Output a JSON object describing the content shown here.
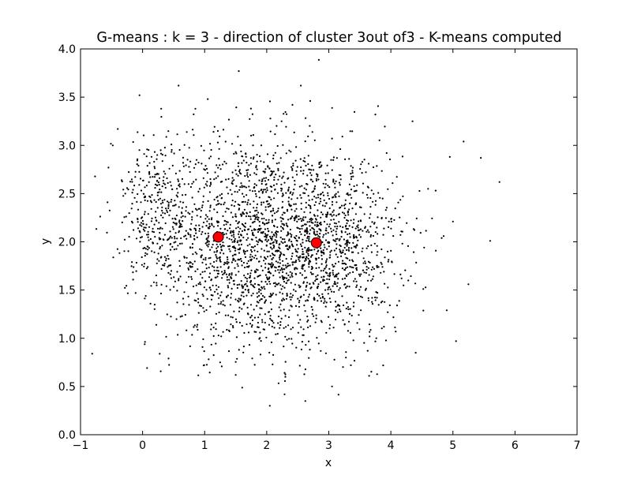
{
  "chart_data": {
    "type": "scatter",
    "title": "G-means : k = 3 - direction of cluster 3out of3 - K-means computed",
    "xlabel": "x",
    "ylabel": "y",
    "xlim": [
      -1,
      7
    ],
    "ylim": [
      0.0,
      4.0
    ],
    "xticks": [
      -1,
      0,
      1,
      2,
      3,
      4,
      5,
      6,
      7
    ],
    "xtick_labels": [
      "−1",
      "0",
      "1",
      "2",
      "3",
      "4",
      "5",
      "6",
      "7"
    ],
    "yticks": [
      0.0,
      0.5,
      1.0,
      1.5,
      2.0,
      2.5,
      3.0,
      3.5,
      4.0
    ],
    "ytick_labels": [
      "0.0",
      "0.5",
      "1.0",
      "1.5",
      "2.0",
      "2.5",
      "3.0",
      "3.5",
      "4.0"
    ],
    "grid": false,
    "series": [
      {
        "marker": "dot",
        "color": "#000000",
        "clusters": [
          {
            "center": [
              1.6,
              2.0
            ],
            "spread": [
              0.75,
              0.55
            ],
            "count": 1500
          },
          {
            "center": [
              3.0,
              1.95
            ],
            "spread": [
              0.6,
              0.5
            ],
            "count": 1000
          },
          {
            "center": [
              0.2,
              2.4
            ],
            "spread": [
              0.35,
              0.35
            ],
            "count": 230
          }
        ],
        "outliers": [
          [
            -0.55,
            2.77
          ],
          [
            -0.48,
            3.0
          ],
          [
            -0.4,
            3.17
          ],
          [
            -0.05,
            3.52
          ],
          [
            0.3,
            3.38
          ],
          [
            0.58,
            3.62
          ],
          [
            0.85,
            3.38
          ],
          [
            1.05,
            3.48
          ],
          [
            1.55,
            3.77
          ],
          [
            2.55,
            3.62
          ],
          [
            2.7,
            3.46
          ],
          [
            3.75,
            3.32
          ],
          [
            4.35,
            3.25
          ],
          [
            4.95,
            2.88
          ],
          [
            5.45,
            2.87
          ],
          [
            5.75,
            2.62
          ],
          [
            5.6,
            2.01
          ],
          [
            5.25,
            1.56
          ],
          [
            5.05,
            0.97
          ],
          [
            4.4,
            0.85
          ],
          [
            3.65,
            0.61
          ],
          [
            2.3,
            0.6
          ],
          [
            2.05,
            0.3
          ],
          [
            1.5,
            0.62
          ],
          [
            1.25,
            0.75
          ],
          [
            4.9,
            1.29
          ],
          [
            4.6,
            2.55
          ],
          [
            5.0,
            2.21
          ],
          [
            4.85,
            2.06
          ]
        ]
      },
      {
        "name": "centroids",
        "marker": "circle",
        "color": "#ff0000",
        "points": [
          [
            1.22,
            2.05
          ],
          [
            2.8,
            1.99
          ]
        ]
      }
    ]
  }
}
